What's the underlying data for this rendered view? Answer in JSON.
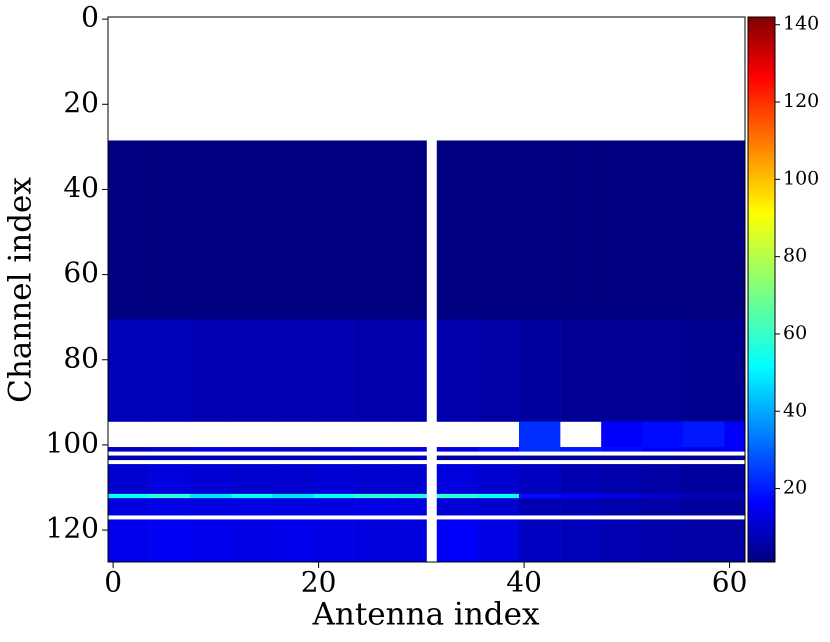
{
  "chart_data": {
    "type": "heatmap",
    "colormap": "jet",
    "x_label": "Antenna index",
    "y_label": "Channel index",
    "x_edges": [
      -0.5,
      3.5,
      7.5,
      11.5,
      15.5,
      19.5,
      23.5,
      27.5,
      30.5,
      31.5,
      35.5,
      39.5,
      43.5,
      47.5,
      51.5,
      55.5,
      59.5,
      61.5
    ],
    "y_edges": [
      -0.5,
      28.5,
      70.5,
      94.5,
      100.5,
      101.5,
      102.5,
      103.5,
      104.5,
      111.5,
      112.5,
      116.5,
      117.5,
      127.5
    ],
    "values": [
      [
        null,
        null,
        null,
        null,
        null,
        null,
        null,
        null,
        null,
        null,
        null,
        null,
        null,
        null,
        null,
        null,
        null
      ],
      [
        1,
        1,
        1,
        1,
        1,
        1,
        1,
        1,
        null,
        1,
        1,
        1,
        1,
        1,
        1,
        1,
        1
      ],
      [
        9,
        9,
        8,
        8,
        8,
        8,
        7,
        7,
        null,
        7,
        6,
        5,
        4,
        4,
        4,
        3,
        3
      ],
      [
        null,
        null,
        null,
        null,
        null,
        null,
        null,
        null,
        null,
        null,
        null,
        25,
        null,
        18,
        20,
        22,
        18
      ],
      [
        10,
        12,
        15,
        14,
        12,
        13,
        15,
        14,
        null,
        15,
        20,
        25,
        22,
        20,
        18,
        15,
        18
      ],
      [
        null,
        null,
        null,
        null,
        null,
        null,
        null,
        null,
        null,
        null,
        null,
        null,
        null,
        null,
        null,
        null,
        null
      ],
      [
        8,
        9,
        10,
        9,
        9,
        10,
        9,
        8,
        null,
        6,
        6,
        5,
        5,
        5,
        4,
        4,
        4
      ],
      [
        null,
        null,
        null,
        null,
        null,
        null,
        null,
        null,
        null,
        null,
        null,
        null,
        null,
        null,
        null,
        null,
        null
      ],
      [
        12,
        14,
        13,
        12,
        12,
        13,
        12,
        12,
        null,
        14,
        12,
        10,
        8,
        7,
        6,
        5,
        5
      ],
      [
        55,
        60,
        50,
        55,
        50,
        55,
        60,
        58,
        null,
        60,
        55,
        20,
        18,
        15,
        12,
        10,
        10
      ],
      [
        14,
        15,
        14,
        15,
        14,
        14,
        15,
        14,
        null,
        13,
        12,
        8,
        8,
        7,
        6,
        5,
        5
      ],
      [
        null,
        null,
        null,
        null,
        null,
        null,
        null,
        null,
        null,
        null,
        null,
        null,
        null,
        null,
        null,
        null,
        null
      ],
      [
        16,
        17,
        16,
        15,
        16,
        15,
        14,
        14,
        null,
        18,
        15,
        10,
        9,
        8,
        7,
        6,
        6
      ]
    ],
    "xlim": [
      -0.5,
      61.5
    ],
    "ylim": [
      127.5,
      -0.5
    ],
    "xticks": [
      0,
      20,
      40,
      60
    ],
    "yticks": [
      0,
      20,
      40,
      60,
      80,
      100,
      120
    ],
    "clim": [
      1,
      142
    ],
    "cticks": [
      20,
      40,
      60,
      80,
      100,
      120,
      140
    ]
  }
}
